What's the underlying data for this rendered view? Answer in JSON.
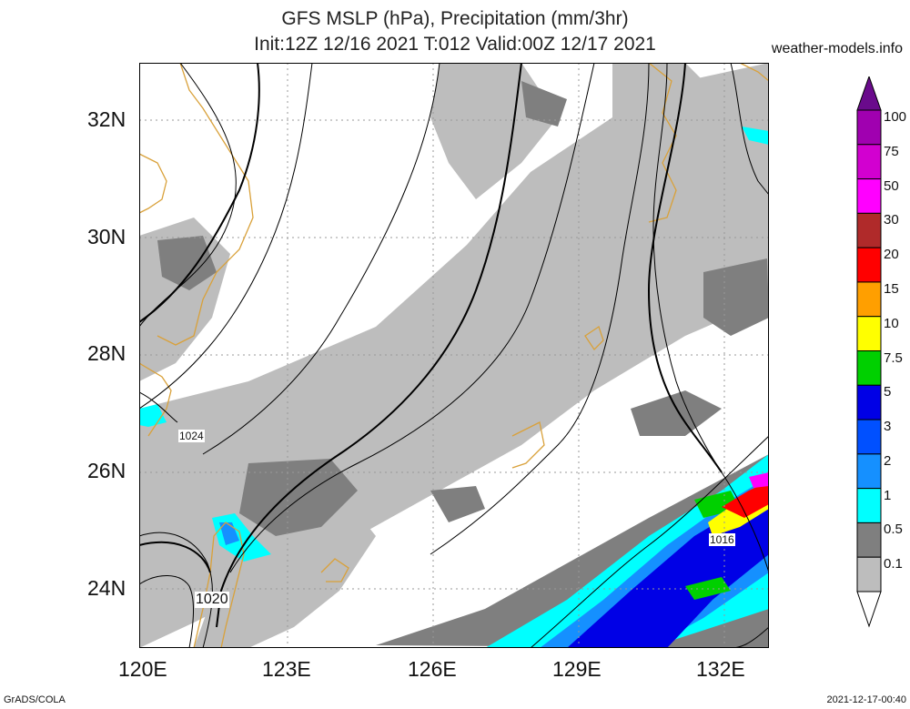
{
  "header": {
    "title_line1": "GFS MSLP (hPa), Precipitation (mm/3hr)",
    "title_line2": "Init:12Z 12/16 2021 T:012 Valid:00Z 12/17 2021",
    "site": "weather-models.info"
  },
  "axes": {
    "lat_labels": [
      "32N",
      "30N",
      "28N",
      "26N",
      "24N"
    ],
    "lon_labels": [
      "120E",
      "123E",
      "126E",
      "129E",
      "132E"
    ]
  },
  "isobars": {
    "labels": [
      "1024",
      "1020",
      "1016"
    ]
  },
  "legend": {
    "labels": [
      "100",
      "75",
      "50",
      "30",
      "20",
      "15",
      "10",
      "7.5",
      "5",
      "3",
      "2",
      "1",
      "0.5",
      "0.1"
    ],
    "colors": [
      "#6a0a8c",
      "#a000b0",
      "#d200d0",
      "#ff00ff",
      "#b02a2a",
      "#ff0000",
      "#ff9f00",
      "#ffff00",
      "#00d000",
      "#0000e6",
      "#0050ff",
      "#1590ff",
      "#00ffff",
      "#7f7f7f",
      "#bdbdbd",
      "#ffffff"
    ]
  },
  "footer": {
    "left": "GrADS/COLA",
    "right": "2021-12-17-00:40"
  }
}
